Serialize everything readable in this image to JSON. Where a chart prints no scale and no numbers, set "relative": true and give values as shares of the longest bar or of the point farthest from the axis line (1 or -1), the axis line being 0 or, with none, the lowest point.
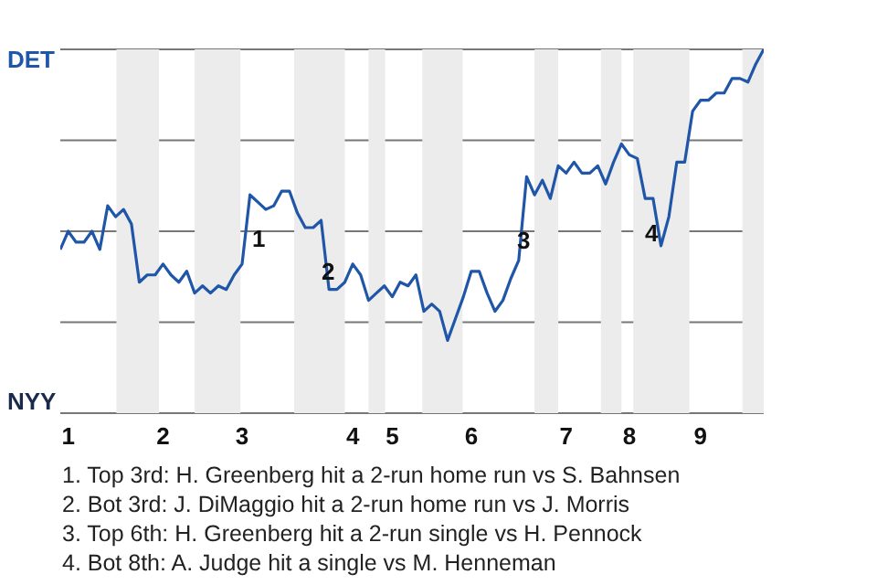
{
  "chart_data": {
    "type": "line",
    "categories": [
      null,
      "1",
      null,
      null,
      null,
      null,
      null,
      null,
      null,
      null,
      null,
      null,
      null,
      "2",
      null,
      null,
      null,
      null,
      null,
      null,
      null,
      null,
      null,
      "3",
      null,
      null,
      null,
      null,
      null,
      null,
      null,
      null,
      null,
      null,
      null,
      null,
      null,
      "4",
      null,
      null,
      null,
      null,
      "5",
      null,
      null,
      null,
      null,
      null,
      null,
      null,
      null,
      null,
      "6",
      null,
      null,
      null,
      null,
      null,
      null,
      null,
      null,
      null,
      null,
      null,
      "7",
      null,
      null,
      null,
      null,
      null,
      null,
      null,
      "8",
      null,
      null,
      null,
      null,
      null,
      null,
      null,
      null,
      "9",
      null,
      null,
      null,
      null,
      null,
      null,
      null,
      null
    ],
    "relative": true,
    "series": [
      {
        "color": "#1f56a8",
        "values": [
          0.45,
          0.5,
          0.47,
          0.47,
          0.5,
          0.45,
          0.57,
          0.54,
          0.56,
          0.52,
          0.36,
          0.38,
          0.38,
          0.41,
          0.38,
          0.36,
          0.39,
          0.33,
          0.35,
          0.33,
          0.35,
          0.34,
          0.38,
          0.41,
          0.6,
          0.58,
          0.56,
          0.57,
          0.61,
          0.61,
          0.55,
          0.51,
          0.51,
          0.53,
          0.34,
          0.34,
          0.36,
          0.41,
          0.38,
          0.31,
          0.33,
          0.35,
          0.32,
          0.36,
          0.35,
          0.38,
          0.28,
          0.3,
          0.28,
          0.2,
          0.26,
          0.32,
          0.39,
          0.39,
          0.33,
          0.28,
          0.31,
          0.37,
          0.42,
          0.65,
          0.6,
          0.64,
          0.59,
          0.68,
          0.66,
          0.69,
          0.66,
          0.66,
          0.68,
          0.63,
          0.69,
          0.74,
          0.71,
          0.7,
          0.59,
          0.59,
          0.46,
          0.54,
          0.69,
          0.69,
          0.83,
          0.86,
          0.86,
          0.88,
          0.88,
          0.92,
          0.92,
          0.91,
          0.96,
          1
        ]
      }
    ],
    "grid": "y",
    "marker": "none",
    "annotations": [
      "DET",
      "NYY",
      "1",
      "2",
      "3",
      "4",
      "1. Top 3rd: H. Greenberg hit a 2-run home run vs S. Bahnsen",
      "2. Bot 3rd: J. DiMaggio hit a 2-run home run vs J. Morris",
      "3. Top 6th: H. Greenberg hit a 2-run single vs H. Pennock",
      "4. Bot 8th: A. Judge hit a single vs M. Henneman"
    ]
  }
}
